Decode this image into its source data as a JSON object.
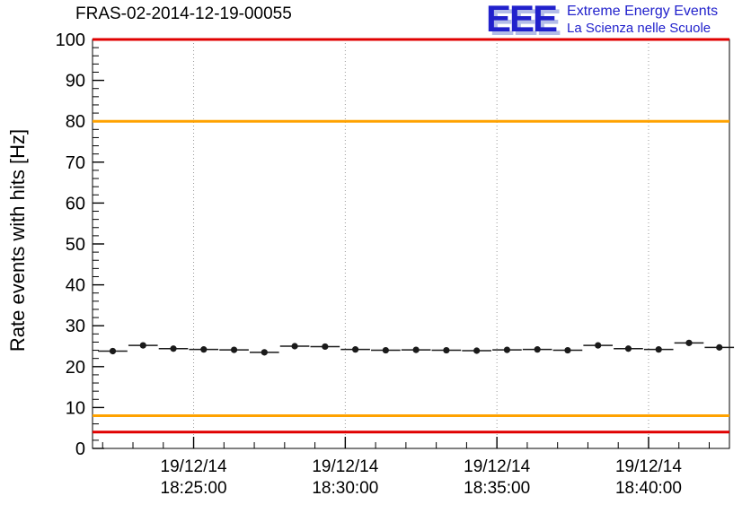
{
  "logo": {
    "wordmark": "EEE",
    "line1": "Extreme Energy Events",
    "line2": "La Scienza nelle Scuole",
    "color": "#2222cc"
  },
  "chart_data": {
    "type": "scatter",
    "title": "FRAS-02-2014-12-19-00055",
    "ylabel": "Rate events with hits [Hz]",
    "ylim": [
      0,
      100
    ],
    "ytick_step": 10,
    "yminor_step": 2,
    "xlim_seconds": [
      66100,
      67360
    ],
    "xminor_step_seconds": 60,
    "grid": "vertical-dashed-at-major-ticks",
    "grid_color": "#999999",
    "xticks": [
      {
        "seconds": 66300,
        "line1": "19/12/14",
        "line2": "18:25:00"
      },
      {
        "seconds": 66600,
        "line1": "19/12/14",
        "line2": "18:30:00"
      },
      {
        "seconds": 66900,
        "line1": "19/12/14",
        "line2": "18:35:00"
      },
      {
        "seconds": 67200,
        "line1": "19/12/14",
        "line2": "18:40:00"
      }
    ],
    "threshold_lines": [
      {
        "y": 100,
        "color": "#e00000",
        "name": "upper-alarm"
      },
      {
        "y": 80,
        "color": "#ffa200",
        "name": "upper-warning"
      },
      {
        "y": 8,
        "color": "#ffa200",
        "name": "lower-warning"
      },
      {
        "y": 4,
        "color": "#e00000",
        "name": "lower-alarm"
      }
    ],
    "series": [
      {
        "name": "rate-events-with-hits",
        "marker_color": "#1a1a1a",
        "xerr_seconds": 29,
        "yerr": 0.5,
        "x_seconds": [
          66140,
          66200,
          66260,
          66320,
          66380,
          66440,
          66500,
          66560,
          66620,
          66680,
          66740,
          66800,
          66860,
          66920,
          66980,
          67040,
          67100,
          67160,
          67220,
          67280,
          67340
        ],
        "y": [
          23.8,
          25.2,
          24.4,
          24.2,
          24.1,
          23.5,
          25.0,
          24.9,
          24.2,
          24.0,
          24.1,
          24.0,
          23.9,
          24.1,
          24.2,
          24.0,
          25.2,
          24.4,
          24.2,
          25.8,
          24.7
        ]
      }
    ]
  }
}
